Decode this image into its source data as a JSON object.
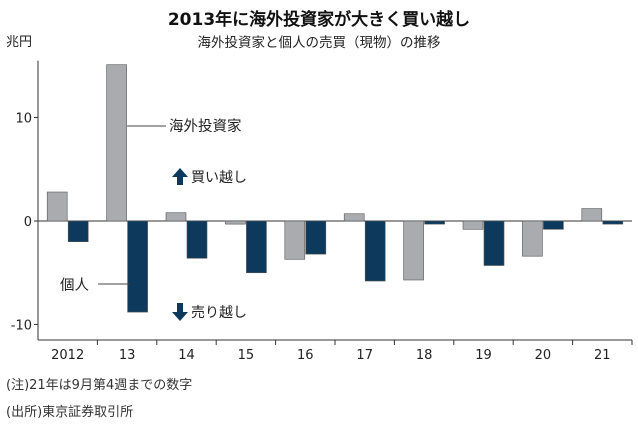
{
  "title": "2013年に海外投資家が大きく買い越し",
  "subtitle": "海外投資家と個人の売買（現物）の推移",
  "unit": "兆円",
  "notes": [
    "(注)21年は9月第4週までの数字",
    "(出所)東京証券取引所"
  ],
  "colors": {
    "foreign": "#a9abae",
    "individual": "#0d3a5c",
    "arrow": "#0d3a5c",
    "axis": "#333333"
  },
  "annotations": {
    "buy": "買い越し",
    "sell": "売り越し"
  },
  "chart_data": {
    "type": "bar",
    "categories": [
      "2012",
      "13",
      "14",
      "15",
      "16",
      "17",
      "18",
      "19",
      "20",
      "21"
    ],
    "series": [
      {
        "name": "海外投資家",
        "values": [
          2.8,
          15.1,
          0.8,
          -0.3,
          -3.7,
          0.7,
          -5.7,
          -0.8,
          -3.4,
          1.2
        ]
      },
      {
        "name": "個人",
        "values": [
          -2.0,
          -8.8,
          -3.6,
          -5.0,
          -3.2,
          -5.8,
          -0.3,
          -4.3,
          -0.8,
          -0.3
        ]
      }
    ],
    "yticks": [
      10,
      0,
      -10
    ],
    "ylim": [
      -11.5,
      15.5
    ],
    "ylabel": "兆円",
    "xlabel": "",
    "grid": false
  }
}
